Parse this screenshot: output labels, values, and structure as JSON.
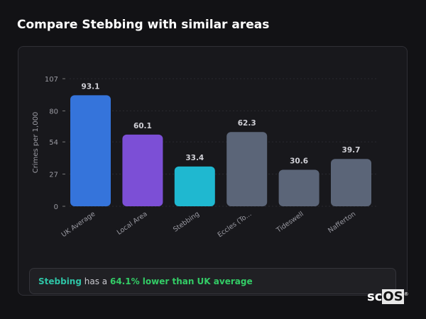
{
  "title": "Compare Stebbing with similar areas",
  "chart_data": {
    "type": "bar",
    "title": "",
    "ylabel": "Crimes per 1,000",
    "xlabel": "",
    "ylim": [
      0,
      107
    ],
    "yticks": [
      0,
      27,
      54,
      80,
      107
    ],
    "grid": true,
    "categories": [
      "UK Average",
      "Local Area",
      "Stebbing",
      "Eccles (To...",
      "Tideswell",
      "Nafferton"
    ],
    "values": [
      93.1,
      60.1,
      33.4,
      62.3,
      30.6,
      39.7
    ],
    "colors": [
      "#3574db",
      "#7c4fd6",
      "#1fb8d0",
      "#5b6578",
      "#5b6578",
      "#5b6578"
    ]
  },
  "summary": {
    "place": "Stebbing",
    "middle": " has a ",
    "comparison": "64.1% lower than UK average"
  },
  "logo": {
    "text_a": "sc",
    "text_b": "OS",
    "mark": "®"
  }
}
